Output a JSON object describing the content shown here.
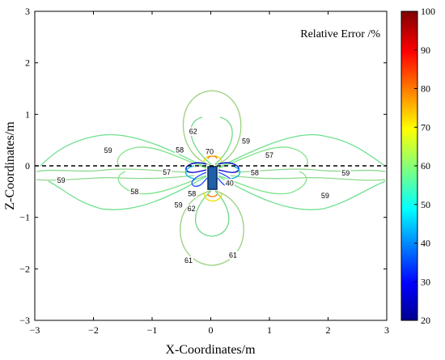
{
  "chart_data": {
    "type": "contour",
    "annotation": "Relative Error /%",
    "xlabel": "X-Coordinates/m",
    "ylabel": "Z-Coordinates/m",
    "xlim": [
      -3,
      3
    ],
    "ylim": [
      -3,
      3
    ],
    "x_ticks": [
      "−3",
      "−2",
      "−1",
      "0",
      "1",
      "2",
      "3"
    ],
    "y_ticks": [
      "−3",
      "−2",
      "−1",
      "0",
      "1",
      "2",
      "3"
    ],
    "colorbar": {
      "min": 20,
      "max": 100,
      "ticks": [
        "20",
        "30",
        "40",
        "50",
        "60",
        "70",
        "80",
        "90",
        "100"
      ]
    },
    "interface_line_z": 0,
    "contour_labels": [
      {
        "text": "59",
        "x": -1.75,
        "y": 0.28
      },
      {
        "text": "58",
        "x": -0.53,
        "y": 0.29
      },
      {
        "text": "62",
        "x": -0.3,
        "y": 0.65
      },
      {
        "text": "70",
        "x": -0.02,
        "y": 0.26
      },
      {
        "text": "59",
        "x": 0.6,
        "y": 0.46
      },
      {
        "text": "57",
        "x": 1.0,
        "y": 0.19
      },
      {
        "text": "57",
        "x": -0.75,
        "y": -0.14
      },
      {
        "text": "58",
        "x": 0.75,
        "y": -0.15
      },
      {
        "text": "59",
        "x": -2.55,
        "y": -0.3
      },
      {
        "text": "59",
        "x": 2.3,
        "y": -0.16
      },
      {
        "text": "58",
        "x": -1.3,
        "y": -0.52
      },
      {
        "text": "58",
        "x": -0.32,
        "y": -0.56
      },
      {
        "text": "40",
        "x": 0.32,
        "y": -0.35
      },
      {
        "text": "59",
        "x": -0.55,
        "y": -0.78
      },
      {
        "text": "62",
        "x": -0.33,
        "y": -0.85
      },
      {
        "text": "59",
        "x": 1.95,
        "y": -0.6
      },
      {
        "text": "61",
        "x": -0.38,
        "y": -1.85
      },
      {
        "text": "61",
        "x": 0.38,
        "y": -1.75
      }
    ]
  }
}
